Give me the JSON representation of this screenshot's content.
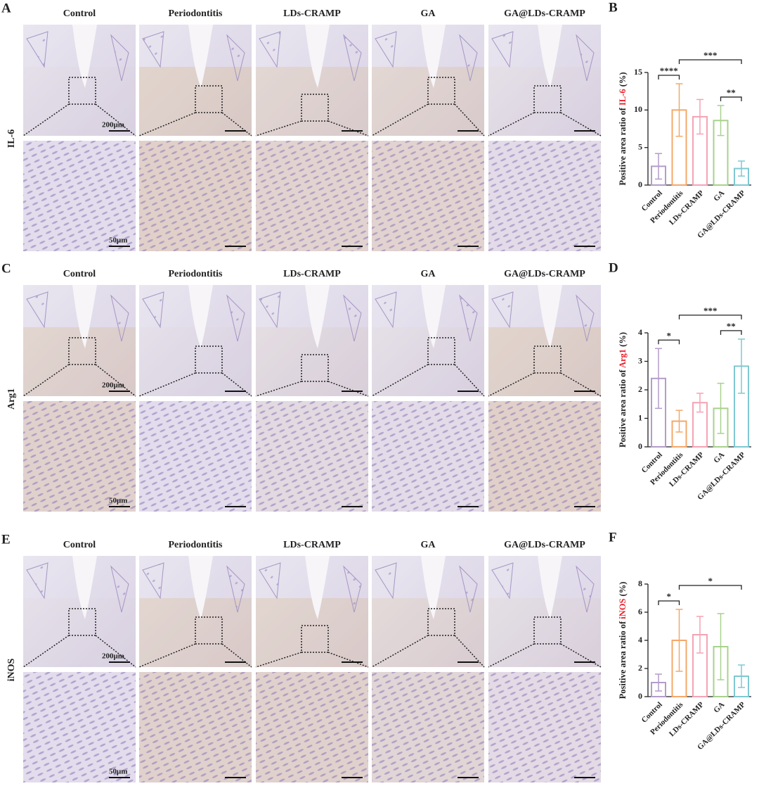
{
  "figure": {
    "rows": [
      {
        "label": "A",
        "stain": "IL-6",
        "columns": [
          "Control",
          "Periodontitis",
          "LDs-CRAMP",
          "GA",
          "GA@LDs-CRAMP"
        ],
        "scale_overview": "200μm",
        "scale_zoom": "50μm",
        "tints": [
          0.05,
          0.55,
          0.45,
          0.45,
          0.1
        ]
      },
      {
        "label": "C",
        "stain": "Arg1",
        "columns": [
          "Control",
          "Periodontitis",
          "LDs-CRAMP",
          "GA",
          "GA@LDs-CRAMP"
        ],
        "scale_overview": "200μm",
        "scale_zoom": "50μm",
        "tints": [
          0.5,
          0.05,
          0.2,
          0.1,
          0.55
        ]
      },
      {
        "label": "E",
        "stain": "iNOS",
        "columns": [
          "Control",
          "Periodontitis",
          "LDs-CRAMP",
          "GA",
          "GA@LDs-CRAMP"
        ],
        "scale_overview": "200μm",
        "scale_zoom": "50μm",
        "tints": [
          0.05,
          0.5,
          0.5,
          0.35,
          0.15
        ]
      }
    ]
  },
  "chart_data": [
    {
      "type": "bar",
      "panel_label": "B",
      "ylabel": [
        "Positive area ratio of ",
        "IL-6",
        " (%)"
      ],
      "ylabel_highlight": "#e8202a",
      "categories": [
        "Control",
        "Periodontitis",
        "LDs-CRAMP",
        "GA",
        "GA@LDs-CRAMP"
      ],
      "values": [
        2.5,
        10,
        9.1,
        8.6,
        2.2
      ],
      "errors": [
        1.7,
        3.5,
        2.3,
        2.0,
        1.0
      ],
      "colors": [
        "#b49ccb",
        "#f4a86a",
        "#f4a3b4",
        "#a9d18e",
        "#7fc8d2"
      ],
      "ylim": [
        0,
        15
      ],
      "yticks": [
        0,
        5,
        10,
        15
      ],
      "significance": [
        {
          "from": 0,
          "to": 1,
          "label": "****"
        },
        {
          "from": 3,
          "to": 4,
          "label": "**"
        },
        {
          "from": 1,
          "to": 4,
          "label": "***"
        }
      ]
    },
    {
      "type": "bar",
      "panel_label": "D",
      "ylabel": [
        "Positive area ratio of ",
        "Arg1",
        " (%)"
      ],
      "ylabel_highlight": "#e8202a",
      "categories": [
        "Control",
        "Periodontitis",
        "LDs-CRAMP",
        "GA",
        "GA@LDs-CRAMP"
      ],
      "values": [
        2.4,
        0.9,
        1.55,
        1.35,
        2.83
      ],
      "errors": [
        1.05,
        0.38,
        0.33,
        0.88,
        0.95
      ],
      "colors": [
        "#b49ccb",
        "#f4a86a",
        "#f4a3b4",
        "#a9d18e",
        "#7fc8d2"
      ],
      "ylim": [
        0,
        4
      ],
      "yticks": [
        0,
        1,
        2,
        3,
        4
      ],
      "significance": [
        {
          "from": 0,
          "to": 1,
          "label": "*"
        },
        {
          "from": 3,
          "to": 4,
          "label": "**"
        },
        {
          "from": 1,
          "to": 4,
          "label": "***"
        }
      ]
    },
    {
      "type": "bar",
      "panel_label": "F",
      "ylabel": [
        "Positive area ratio of ",
        "iNOS",
        " (%)"
      ],
      "ylabel_highlight": "#e8202a",
      "categories": [
        "Control",
        "Periodontitis",
        "LDs-CRAMP",
        "GA",
        "GA@LDs-CRAMP"
      ],
      "values": [
        1.0,
        4.0,
        4.4,
        3.55,
        1.45
      ],
      "errors": [
        0.6,
        2.2,
        1.3,
        2.35,
        0.8
      ],
      "colors": [
        "#b49ccb",
        "#f4a86a",
        "#f4a3b4",
        "#a9d18e",
        "#7fc8d2"
      ],
      "ylim": [
        0,
        8
      ],
      "yticks": [
        0,
        2,
        4,
        6,
        8
      ],
      "significance": [
        {
          "from": 0,
          "to": 1,
          "label": "*"
        },
        {
          "from": 1,
          "to": 4,
          "label": "*"
        }
      ]
    }
  ]
}
